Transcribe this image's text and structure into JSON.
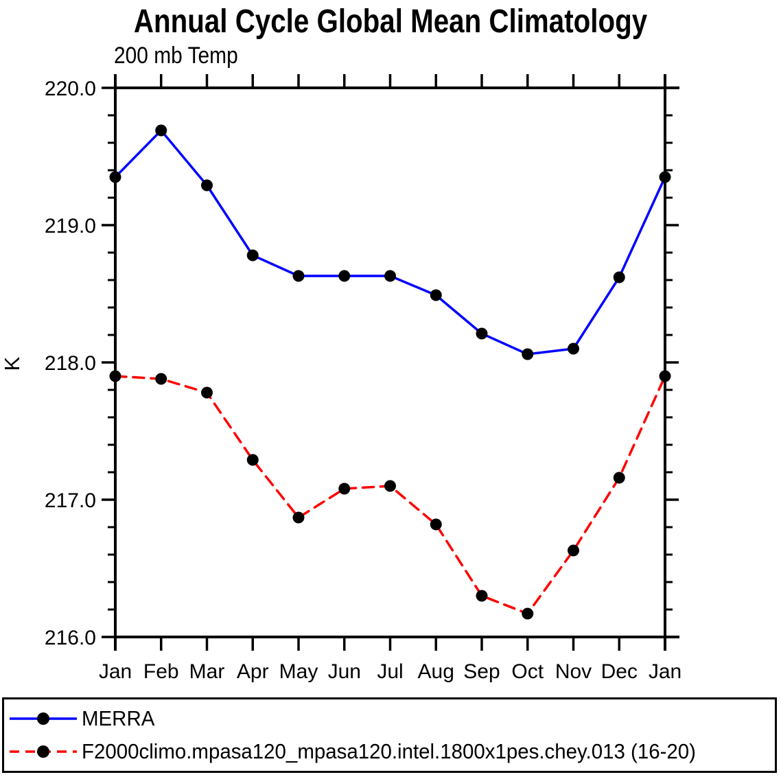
{
  "page": {
    "background": "#ffffff",
    "axis_color": "#000000"
  },
  "chart_data": {
    "type": "line",
    "title": "Annual Cycle Global Mean Climatology",
    "subtitle": "200 mb Temp",
    "ylabel": "K",
    "categories": [
      "Jan",
      "Feb",
      "Mar",
      "Apr",
      "May",
      "Jun",
      "Jul",
      "Aug",
      "Sep",
      "Oct",
      "Nov",
      "Dec",
      "Jan"
    ],
    "ylim": [
      216.0,
      220.0
    ],
    "ytick_major": [
      216.0,
      217.0,
      218.0,
      219.0,
      220.0
    ],
    "ytick_major_labels": [
      "216.0",
      "217.0",
      "218.0",
      "219.0",
      "220.0"
    ],
    "ytick_minor_step": 0.2,
    "grid": false,
    "legend_position": "bottom",
    "axis_color": "#000000",
    "marker_color": "#000000",
    "series": [
      {
        "name": "MERRA",
        "color": "#0000ff",
        "line_style": "solid",
        "marker": "circle",
        "values": [
          219.35,
          219.69,
          219.29,
          218.78,
          218.63,
          218.63,
          218.63,
          218.49,
          218.21,
          218.06,
          218.1,
          218.62,
          219.35
        ]
      },
      {
        "name": "F2000climo.mpasa120_mpasa120.intel.1800x1pes.chey.013 (16-20)",
        "color": "#ff0000",
        "line_style": "dashed",
        "marker": "circle",
        "values": [
          217.9,
          217.88,
          217.78,
          217.29,
          216.87,
          217.08,
          217.1,
          216.82,
          216.3,
          216.17,
          216.63,
          217.16,
          217.9
        ]
      }
    ]
  }
}
